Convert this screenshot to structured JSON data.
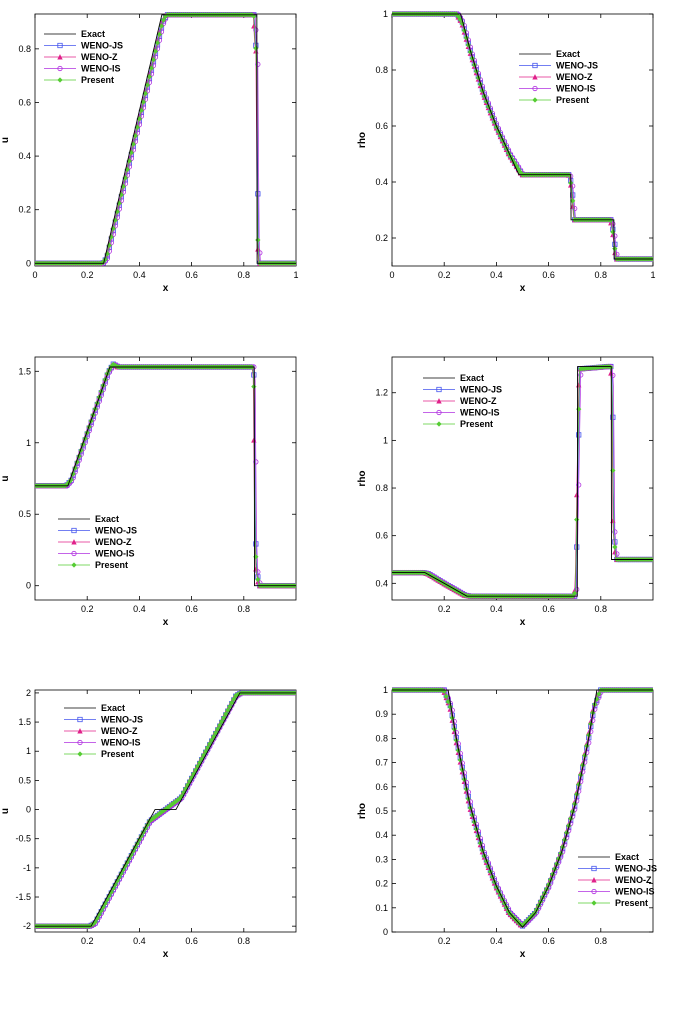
{
  "series_styles": {
    "Exact": {
      "color": "#000000",
      "marker": "none"
    },
    "WENO-JS": {
      "color": "#4455ee",
      "marker": "square"
    },
    "WENO-Z": {
      "color": "#e0208a",
      "marker": "triangle"
    },
    "WENO-IS": {
      "color": "#b030e0",
      "marker": "circle"
    },
    "Present": {
      "color": "#55cc33",
      "marker": "diamond"
    }
  },
  "chart_data": [
    {
      "type": "line",
      "title": "",
      "xlabel": "x",
      "ylabel": "u",
      "xlim": [
        0,
        1
      ],
      "ylim": [
        -0.01,
        0.93
      ],
      "xticks": [
        0,
        0.2,
        0.4,
        0.6,
        0.8,
        1
      ],
      "xtick_labels": [
        "0",
        "0.2",
        "0.4",
        "0.6",
        "0.8",
        "1"
      ],
      "yticks": [
        0,
        0.2,
        0.4,
        0.6,
        0.8
      ],
      "ytick_labels": [
        "0",
        "0.2",
        "0.4",
        "0.6",
        "0.8"
      ],
      "legend_position": "top-left",
      "legend": [
        "Exact",
        "WENO-JS",
        "WENO-Z",
        "WENO-IS",
        "Present"
      ],
      "exact": {
        "x": [
          0,
          0.263,
          0.486,
          0.85,
          0.851,
          1
        ],
        "y": [
          0,
          0,
          0.927,
          0.927,
          0,
          0
        ]
      },
      "numerical": {
        "x": [
          0,
          0.26,
          0.275,
          0.49,
          0.505,
          0.84,
          0.845,
          0.85,
          0.855,
          0.86,
          1
        ],
        "y": [
          0,
          0,
          0.02,
          0.9,
          0.927,
          0.927,
          0.82,
          0.79,
          0.1,
          0,
          0
        ]
      },
      "grid": false
    },
    {
      "type": "line",
      "title": "",
      "xlabel": "x",
      "ylabel": "rho",
      "xlim": [
        0,
        1
      ],
      "ylim": [
        0.1,
        1.0
      ],
      "xticks": [
        0,
        0.2,
        0.4,
        0.6,
        0.8,
        1
      ],
      "xtick_labels": [
        "0",
        "0.2",
        "0.4",
        "0.6",
        "0.8",
        "1"
      ],
      "yticks": [
        0.2,
        0.4,
        0.6,
        0.8,
        1
      ],
      "ytick_labels": [
        "0.2",
        "0.4",
        "0.6",
        "0.8",
        "1"
      ],
      "legend_position": "top-right",
      "legend": [
        "Exact",
        "WENO-JS",
        "WENO-Z",
        "WENO-IS",
        "Present"
      ],
      "exact": {
        "x": [
          0,
          0.263,
          0.3,
          0.35,
          0.4,
          0.45,
          0.486,
          0.685,
          0.686,
          0.85,
          0.851,
          1
        ],
        "y": [
          1,
          1,
          0.87,
          0.72,
          0.6,
          0.5,
          0.426,
          0.426,
          0.265,
          0.265,
          0.125,
          0.125
        ]
      },
      "numerical": {
        "x": [
          0,
          0.25,
          0.27,
          0.3,
          0.35,
          0.4,
          0.45,
          0.5,
          0.68,
          0.69,
          0.7,
          0.84,
          0.85,
          0.86,
          1
        ],
        "y": [
          1,
          1,
          0.97,
          0.87,
          0.72,
          0.6,
          0.5,
          0.426,
          0.426,
          0.38,
          0.265,
          0.265,
          0.21,
          0.125,
          0.125
        ]
      },
      "grid": false
    },
    {
      "type": "line",
      "title": "",
      "xlabel": "x",
      "ylabel": "u",
      "xlim": [
        0,
        1
      ],
      "ylim": [
        -0.1,
        1.6
      ],
      "xticks": [
        0.2,
        0.4,
        0.6,
        0.8
      ],
      "xtick_labels": [
        "0.2",
        "0.4",
        "0.6",
        "0.8"
      ],
      "yticks": [
        0,
        0.5,
        1,
        1.5
      ],
      "ytick_labels": [
        "0",
        "0.5",
        "1",
        "1.5"
      ],
      "legend_position": "bottom-left",
      "legend": [
        "Exact",
        "WENO-JS",
        "WENO-Z",
        "WENO-IS",
        "Present"
      ],
      "exact": {
        "x": [
          0,
          0.126,
          0.287,
          0.84,
          0.841,
          1
        ],
        "y": [
          0.699,
          0.699,
          1.53,
          1.53,
          0,
          0
        ]
      },
      "numerical": {
        "x": [
          0,
          0.12,
          0.14,
          0.28,
          0.3,
          0.32,
          0.835,
          0.84,
          0.845,
          0.85,
          0.86,
          1
        ],
        "y": [
          0.699,
          0.699,
          0.74,
          1.49,
          1.55,
          1.53,
          1.53,
          1.45,
          0.35,
          0.1,
          0,
          0
        ]
      },
      "grid": false
    },
    {
      "type": "line",
      "title": "",
      "xlabel": "x",
      "ylabel": "rho",
      "xlim": [
        0,
        1
      ],
      "ylim": [
        0.33,
        1.35
      ],
      "xticks": [
        0.2,
        0.4,
        0.6,
        0.8
      ],
      "xtick_labels": [
        "0.2",
        "0.4",
        "0.6",
        "0.8"
      ],
      "yticks": [
        0.4,
        0.6,
        0.8,
        1,
        1.2
      ],
      "ytick_labels": [
        "0.4",
        "0.6",
        "0.8",
        "1",
        "1.2"
      ],
      "legend_position": "top-left",
      "legend": [
        "Exact",
        "WENO-JS",
        "WENO-Z",
        "WENO-IS",
        "Present"
      ],
      "exact": {
        "x": [
          0,
          0.126,
          0.2,
          0.287,
          0.71,
          0.711,
          0.84,
          0.841,
          1
        ],
        "y": [
          0.445,
          0.445,
          0.4,
          0.346,
          0.346,
          1.31,
          1.31,
          0.5,
          0.5
        ]
      },
      "numerical": {
        "x": [
          0,
          0.12,
          0.14,
          0.2,
          0.28,
          0.3,
          0.7,
          0.705,
          0.71,
          0.72,
          0.83,
          0.84,
          0.845,
          0.85,
          0.86,
          1
        ],
        "y": [
          0.445,
          0.445,
          0.44,
          0.4,
          0.35,
          0.346,
          0.346,
          0.38,
          0.7,
          1.3,
          1.31,
          1.31,
          1.24,
          0.62,
          0.5,
          0.5
        ]
      },
      "grid": false
    },
    {
      "type": "line",
      "title": "",
      "xlabel": "x",
      "ylabel": "u",
      "xlim": [
        0,
        1
      ],
      "ylim": [
        -2.1,
        2.05
      ],
      "xticks": [
        0.2,
        0.4,
        0.6,
        0.8
      ],
      "xtick_labels": [
        "0.2",
        "0.4",
        "0.6",
        "0.8"
      ],
      "yticks": [
        -2,
        -1.5,
        -1,
        -0.5,
        0,
        0.5,
        1,
        1.5,
        2
      ],
      "ytick_labels": [
        "-2",
        "-1.5",
        "-1",
        "-0.5",
        "0",
        "0.5",
        "1",
        "1.5",
        "2"
      ],
      "legend_position": "top-left",
      "legend": [
        "Exact",
        "WENO-JS",
        "WENO-Z",
        "WENO-IS",
        "Present"
      ],
      "exact": {
        "x": [
          0,
          0.215,
          0.46,
          0.54,
          0.785,
          1
        ],
        "y": [
          -2,
          -2,
          0,
          0,
          2,
          2
        ]
      },
      "numerical": {
        "x": [
          0,
          0.21,
          0.23,
          0.44,
          0.5,
          0.56,
          0.77,
          0.79,
          1
        ],
        "y": [
          -2,
          -2,
          -1.95,
          -0.2,
          0,
          0.2,
          1.95,
          2,
          2
        ]
      },
      "grid": false
    },
    {
      "type": "line",
      "title": "",
      "xlabel": "x",
      "ylabel": "rho",
      "xlim": [
        0,
        1
      ],
      "ylim": [
        0,
        1.0
      ],
      "xticks": [
        0.2,
        0.4,
        0.6,
        0.8
      ],
      "xtick_labels": [
        "0.2",
        "0.4",
        "0.6",
        "0.8"
      ],
      "yticks": [
        0,
        0.1,
        0.2,
        0.3,
        0.4,
        0.5,
        0.6,
        0.7,
        0.8,
        0.9,
        1
      ],
      "ytick_labels": [
        "0",
        "0.1",
        "0.2",
        "0.3",
        "0.4",
        "0.5",
        "0.6",
        "0.7",
        "0.8",
        "0.9",
        "1"
      ],
      "legend_position": "bottom-right",
      "legend": [
        "Exact",
        "WENO-JS",
        "WENO-Z",
        "WENO-IS",
        "Present"
      ],
      "exact": {
        "x": [
          0,
          0.215,
          0.25,
          0.3,
          0.35,
          0.4,
          0.45,
          0.5,
          0.55,
          0.6,
          0.65,
          0.7,
          0.75,
          0.785,
          1
        ],
        "y": [
          1,
          1,
          0.78,
          0.52,
          0.33,
          0.19,
          0.08,
          0.02,
          0.08,
          0.19,
          0.33,
          0.52,
          0.78,
          1,
          1
        ]
      },
      "numerical": {
        "x": [
          0,
          0.2,
          0.225,
          0.25,
          0.3,
          0.35,
          0.4,
          0.45,
          0.5,
          0.55,
          0.6,
          0.65,
          0.7,
          0.75,
          0.775,
          0.8,
          1
        ],
        "y": [
          1,
          1,
          0.93,
          0.78,
          0.52,
          0.33,
          0.19,
          0.08,
          0.025,
          0.08,
          0.19,
          0.33,
          0.52,
          0.78,
          0.93,
          1,
          1
        ]
      },
      "grid": false
    }
  ]
}
